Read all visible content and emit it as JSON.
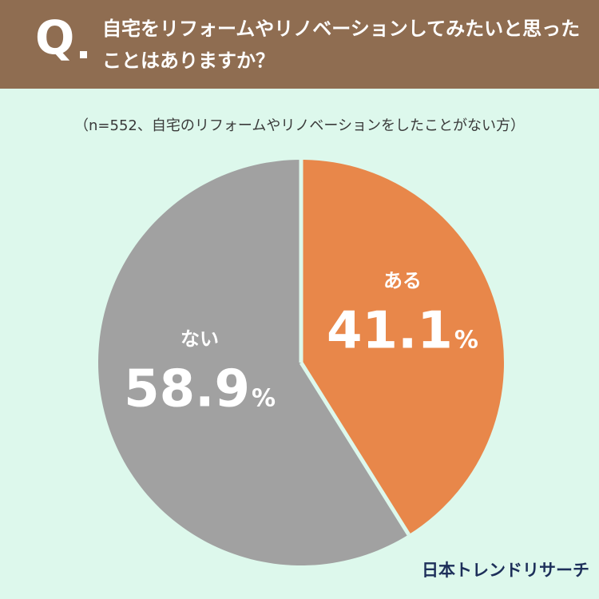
{
  "header": {
    "q_label": "Q",
    "question": "自宅をリフォームやリノベーションしてみたいと思ったことはありますか？"
  },
  "sample_note": "（n=552、自宅のリフォームやリノベーションをしたことがない方）",
  "chart_data": {
    "type": "pie",
    "title": "",
    "slices": [
      {
        "label": "ある",
        "value": 41.1,
        "display": "41.1",
        "unit": "%",
        "color": "#e8874a"
      },
      {
        "label": "ない",
        "value": 58.9,
        "display": "58.9",
        "unit": "%",
        "color": "#a1a1a1"
      }
    ],
    "start_angle": "12 o'clock",
    "direction": "clockwise"
  },
  "logo": "日本トレンドリサーチ"
}
